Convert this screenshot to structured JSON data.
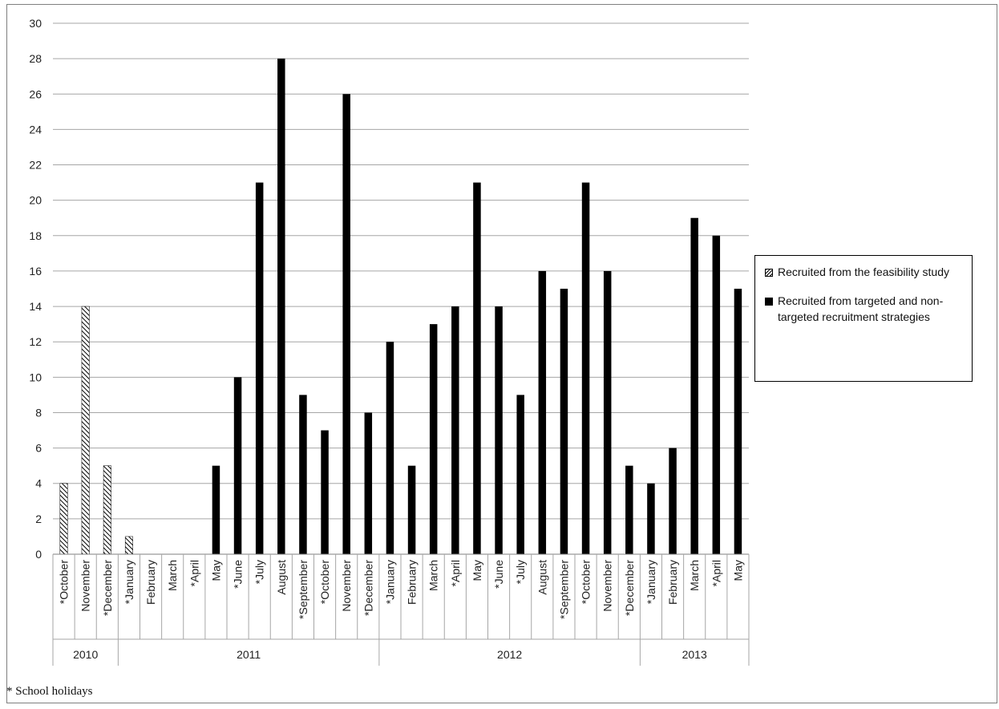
{
  "chart_data": {
    "type": "bar",
    "categories": [
      "*October",
      "November",
      "*December",
      "*January",
      "February",
      "March",
      "*April",
      "May",
      "*June",
      "*July",
      "August",
      "*September",
      "*October",
      "November",
      "*December",
      "*January",
      "February",
      "March",
      "*April",
      "May",
      "*June",
      "*July",
      "August",
      "*September",
      "*October",
      "November",
      "*December",
      "*January",
      "February",
      "March",
      "*April",
      "May"
    ],
    "year_groups": [
      {
        "label": "2010",
        "count": 3
      },
      {
        "label": "2011",
        "count": 12
      },
      {
        "label": "2012",
        "count": 12
      },
      {
        "label": "2013",
        "count": 5
      }
    ],
    "series": [
      {
        "name": "Recruited from the feasibility study",
        "style": "hatched",
        "values": [
          4,
          14,
          5,
          1,
          0,
          0,
          0,
          0,
          0,
          0,
          0,
          0,
          0,
          0,
          0,
          0,
          0,
          0,
          0,
          0,
          0,
          0,
          0,
          0,
          0,
          0,
          0,
          0,
          0,
          0,
          0,
          0
        ]
      },
      {
        "name": "Recruited from targeted and non-targeted recruitment strategies",
        "style": "solid",
        "values": [
          0,
          0,
          0,
          0,
          0,
          0,
          0,
          5,
          10,
          21,
          28,
          9,
          7,
          26,
          8,
          12,
          5,
          13,
          14,
          21,
          14,
          9,
          16,
          15,
          21,
          16,
          5,
          4,
          6,
          19,
          18,
          15
        ]
      }
    ],
    "ylim": [
      0,
      30
    ],
    "yticks": [
      0,
      2,
      4,
      6,
      8,
      10,
      12,
      14,
      16,
      18,
      20,
      22,
      24,
      26,
      28,
      30
    ],
    "grid": true,
    "legend_position": "right",
    "colors": {
      "hatched": "#000000",
      "solid": "#000000",
      "grid": "#a6a6a6"
    }
  },
  "footnote": "* School holidays"
}
